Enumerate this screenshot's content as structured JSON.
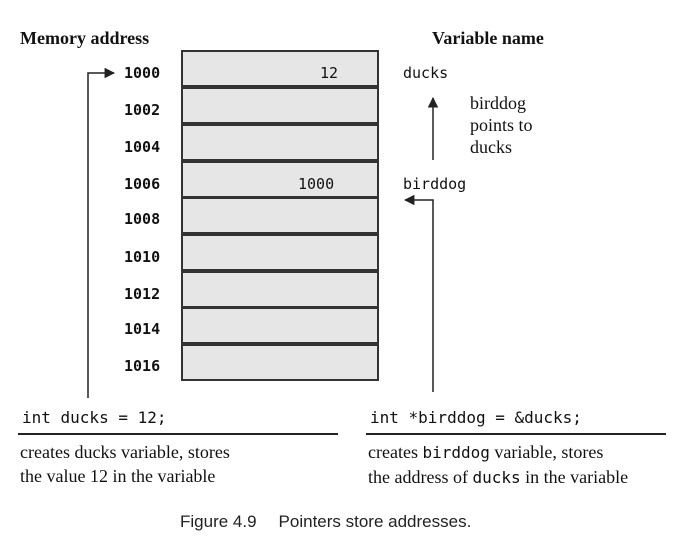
{
  "headers": {
    "memory_address": "Memory address",
    "variable_name": "Variable name"
  },
  "memory": {
    "addresses": [
      "1000",
      "1002",
      "1004",
      "1006",
      "1008",
      "1010",
      "1012",
      "1014",
      "1016"
    ],
    "cell_values": [
      "12",
      "",
      "",
      "1000",
      "",
      "",
      "",
      "",
      ""
    ]
  },
  "variables": {
    "ducks": "ducks",
    "birddog": "birddog"
  },
  "annotation": {
    "line1": "birddog",
    "line2": "points to",
    "line3": "ducks"
  },
  "statements": {
    "left_code": "int ducks = 12;",
    "left_desc_line1": "creates ducks variable, stores",
    "left_desc_line2": "the value 12 in the variable",
    "right_code": "int *birddog = &ducks;",
    "right_desc_prefix": "creates ",
    "right_desc_code1": "birddog",
    "right_desc_suffix1": " variable, stores",
    "right_desc_line2_prefix": "the address of ",
    "right_desc_code2": "ducks",
    "right_desc_line2_suffix": " in the variable"
  },
  "caption": {
    "label": "Figure 4.9",
    "text": "Pointers store addresses."
  },
  "colors": {
    "cell_fill": "#e6e6e6",
    "cell_border": "#333333",
    "line": "#222222"
  }
}
